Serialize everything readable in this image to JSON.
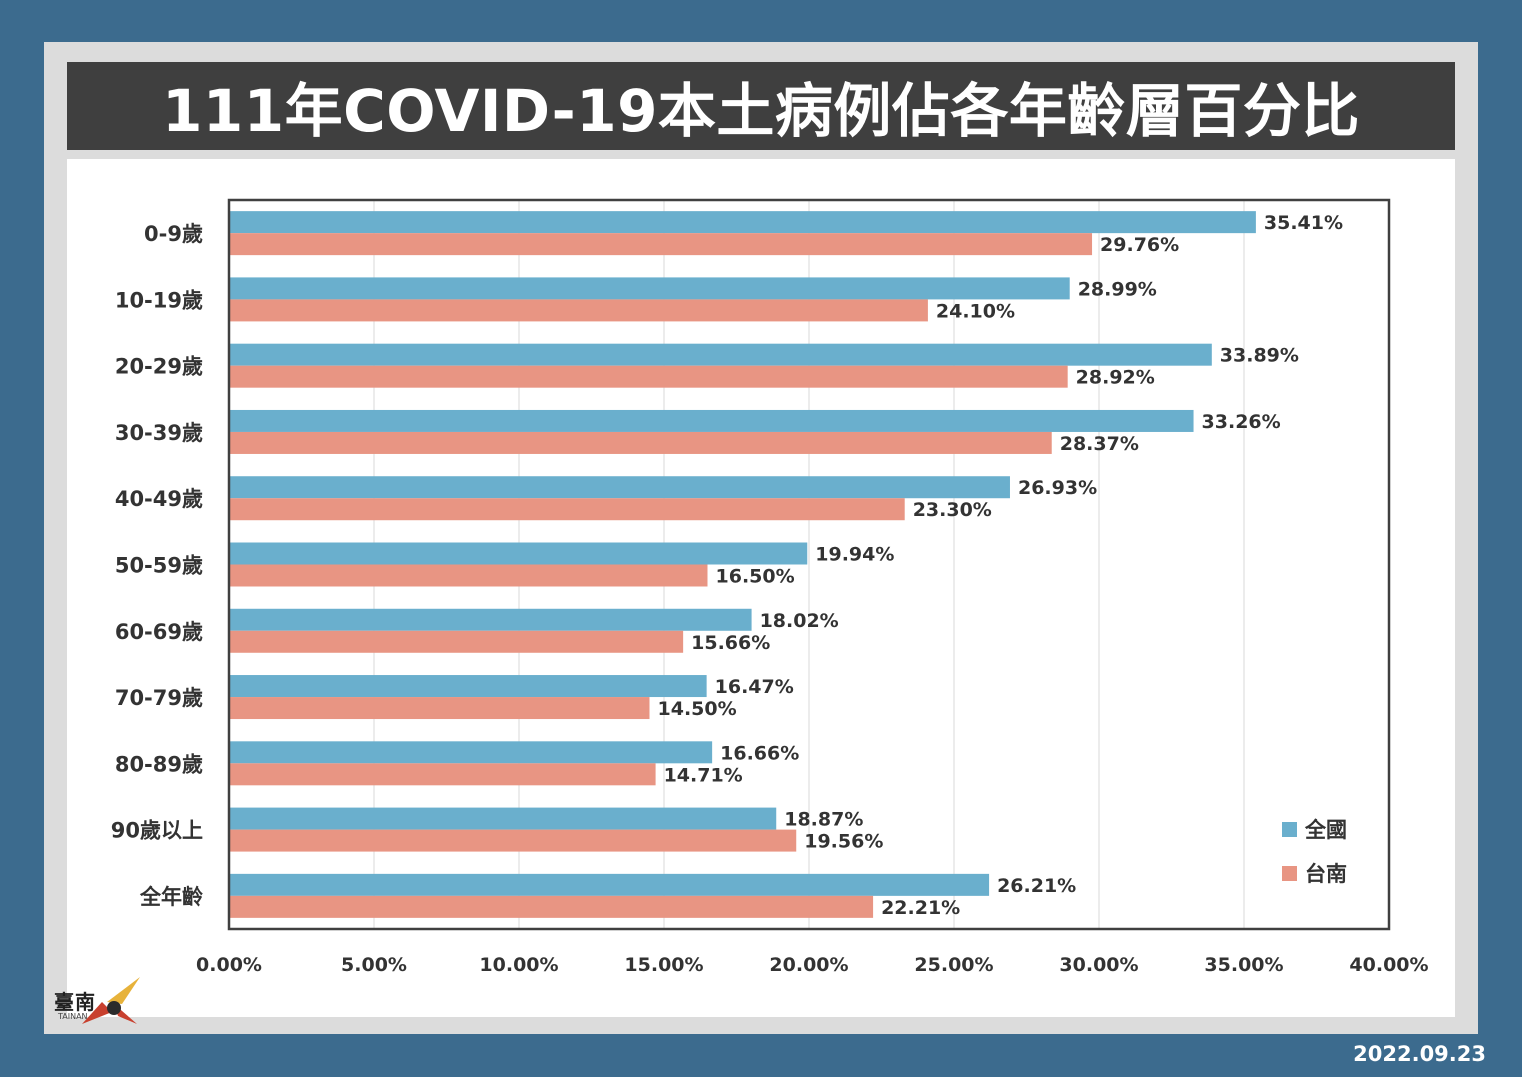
{
  "title": "111年COVID-19本土病例佔各年齡層百分比",
  "date": "2022.09.23",
  "logo": {
    "text": "臺南",
    "sub": "TAINAN"
  },
  "colors": {
    "national": "#6aafcd",
    "tainan": "#e89583",
    "title_bg": "#3f3f3f",
    "page_bg": "#3c6b8e"
  },
  "chart_data": {
    "type": "bar",
    "orientation": "horizontal",
    "categories": [
      "0-9歲",
      "10-19歲",
      "20-29歲",
      "30-39歲",
      "40-49歲",
      "50-59歲",
      "60-69歲",
      "70-79歲",
      "80-89歲",
      "90歲以上",
      "全年齡"
    ],
    "series": [
      {
        "name": "全國",
        "values": [
          35.41,
          28.99,
          33.89,
          33.26,
          26.93,
          19.94,
          18.02,
          16.47,
          16.66,
          18.87,
          26.21
        ],
        "labels": [
          "35.41%",
          "28.99%",
          "33.89%",
          "33.26%",
          "26.93%",
          "19.94%",
          "18.02%",
          "16.47%",
          "16.66%",
          "18.87%",
          "26.21%"
        ]
      },
      {
        "name": "台南",
        "values": [
          29.76,
          24.1,
          28.92,
          28.37,
          23.3,
          16.5,
          15.66,
          14.5,
          14.71,
          19.56,
          22.21
        ],
        "labels": [
          "29.76%",
          "24.10%",
          "28.92%",
          "28.37%",
          "23.30%",
          "16.50%",
          "15.66%",
          "14.50%",
          "14.71%",
          "19.56%",
          "22.21%"
        ]
      }
    ],
    "xlim": [
      0,
      40
    ],
    "x_ticks": [
      "0.00%",
      "5.00%",
      "10.00%",
      "15.00%",
      "20.00%",
      "25.00%",
      "30.00%",
      "35.00%",
      "40.00%"
    ],
    "x_tick_values": [
      0,
      5,
      10,
      15,
      20,
      25,
      30,
      35,
      40
    ],
    "grid": true,
    "legend_position": "bottom-right"
  }
}
